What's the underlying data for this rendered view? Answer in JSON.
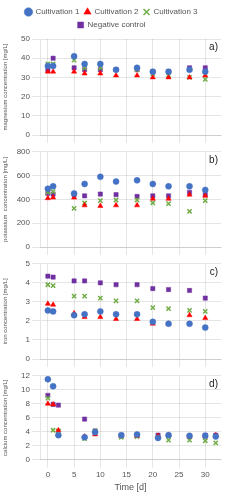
{
  "chart_data": [
    {
      "type": "scatter",
      "annotation": "a)",
      "ylabel": "magnesium concentration [mg/L]",
      "series": [
        {
          "name": "Cultivation 1",
          "color": "#4472C4",
          "marker": "circle",
          "x": [
            0,
            1,
            5,
            7,
            10,
            13,
            17,
            20,
            23,
            27,
            30
          ],
          "values": [
            36,
            36,
            41,
            37,
            37,
            34,
            35,
            33,
            33,
            34,
            33
          ]
        },
        {
          "name": "Cultivation 2",
          "color": "#FF0000",
          "marker": "triangle",
          "x": [
            0,
            1,
            5,
            7,
            10,
            13,
            17,
            20,
            23,
            27,
            30
          ],
          "values": [
            33,
            33,
            33,
            32,
            32,
            31,
            31,
            30,
            30,
            30,
            31
          ]
        },
        {
          "name": "Cultivation 3",
          "color": "#70AD47",
          "marker": "x",
          "x": [
            0,
            1,
            5,
            7,
            10,
            13,
            17,
            20,
            23,
            27,
            30
          ],
          "values": [
            37,
            37,
            39,
            35,
            35,
            34,
            34,
            32,
            31,
            30,
            29
          ]
        },
        {
          "name": "Negative control",
          "color": "#7030A0",
          "marker": "square",
          "x": [
            0,
            1,
            5,
            7,
            10,
            13,
            17,
            20,
            23,
            27,
            30
          ],
          "values": [
            34,
            40,
            35,
            34,
            34,
            34,
            34,
            33,
            33,
            35,
            35
          ]
        }
      ],
      "xlim": [
        -1.5,
        33
      ],
      "xticks": [
        0,
        5,
        10,
        15,
        20,
        25,
        30
      ],
      "ylim": [
        0,
        50
      ],
      "yticks": [
        0,
        10,
        20,
        30,
        40,
        50
      ],
      "grid": true,
      "legend": "top",
      "tick_labels": "y"
    },
    {
      "type": "scatter",
      "annotation": "b)",
      "ylabel": "potassium  concentration [mg/L]",
      "series": [
        {
          "color": "#4472C4",
          "marker": "circle",
          "x": [
            0,
            1,
            5,
            7,
            10,
            13,
            17,
            20,
            23,
            27,
            30
          ],
          "values": [
            490,
            510,
            450,
            530,
            590,
            550,
            560,
            530,
            510,
            510,
            480
          ]
        },
        {
          "color": "#FF0000",
          "marker": "triangle",
          "x": [
            0,
            1,
            5,
            7,
            10,
            13,
            17,
            20,
            23,
            27,
            30
          ],
          "values": [
            410,
            415,
            415,
            350,
            345,
            350,
            350,
            405,
            405,
            440,
            430
          ]
        },
        {
          "color": "#70AD47",
          "marker": "x",
          "x": [
            0,
            1,
            5,
            7,
            10,
            13,
            17,
            20,
            23,
            27,
            30
          ],
          "values": [
            460,
            465,
            325,
            370,
            390,
            395,
            395,
            370,
            365,
            300,
            390
          ]
        },
        {
          "color": "#7030A0",
          "marker": "square",
          "x": [
            0,
            1,
            5,
            7,
            10,
            13,
            17,
            20,
            23,
            27,
            30
          ],
          "values": [
            450,
            445,
            440,
            430,
            445,
            440,
            425,
            430,
            430,
            460,
            440
          ]
        }
      ],
      "xlim": [
        -1.5,
        33
      ],
      "xticks": [
        0,
        5,
        10,
        15,
        20,
        25,
        30
      ],
      "ylim": [
        0,
        800
      ],
      "yticks": [
        0,
        200,
        400,
        600,
        800
      ],
      "grid": true,
      "tick_labels": "y"
    },
    {
      "type": "scatter",
      "annotation": "c)",
      "ylabel": "iron concentration [mg/L]",
      "series": [
        {
          "color": "#4472C4",
          "marker": "circle",
          "x": [
            0,
            1,
            5,
            7,
            10,
            13,
            17,
            20,
            23,
            27,
            30
          ],
          "values": [
            2.55,
            2.5,
            2.3,
            2.35,
            2.5,
            2.35,
            2.35,
            1.95,
            1.85,
            1.85,
            1.65
          ]
        },
        {
          "color": "#FF0000",
          "marker": "triangle",
          "x": [
            0,
            1,
            5,
            7,
            10,
            13,
            17,
            20,
            23,
            27,
            30
          ],
          "values": [
            2.9,
            2.85,
            2.4,
            2.2,
            2.2,
            2.1,
            2.1,
            1.85,
            1.85,
            2.3,
            2.15
          ]
        },
        {
          "color": "#70AD47",
          "marker": "x",
          "x": [
            0,
            1,
            5,
            7,
            10,
            13,
            17,
            20,
            23,
            27,
            30
          ],
          "values": [
            3.9,
            3.85,
            3.3,
            3.3,
            3.2,
            3.05,
            3.05,
            2.7,
            2.65,
            2.55,
            2.5
          ]
        },
        {
          "color": "#7030A0",
          "marker": "square",
          "x": [
            0,
            1,
            5,
            7,
            10,
            13,
            17,
            20,
            23,
            27,
            30
          ],
          "values": [
            4.35,
            4.3,
            4.1,
            4.1,
            4.0,
            3.9,
            3.9,
            3.7,
            3.65,
            3.6,
            3.2
          ]
        }
      ],
      "xlim": [
        -1.5,
        33
      ],
      "xticks": [
        0,
        5,
        10,
        15,
        20,
        25,
        30
      ],
      "ylim": [
        0,
        5
      ],
      "yticks": [
        0,
        1,
        2,
        3,
        4,
        5
      ],
      "grid": true,
      "tick_labels": "y"
    },
    {
      "type": "scatter",
      "annotation": "d)",
      "ylabel": "calcium concentration [mg/L]",
      "xlabel": "Time [d]",
      "series": [
        {
          "color": "#4472C4",
          "marker": "circle",
          "x": [
            0,
            1,
            2,
            7,
            9,
            14,
            17,
            21,
            23,
            27,
            30,
            32
          ],
          "values": [
            11.5,
            10.5,
            3.5,
            3.2,
            3.9,
            3.5,
            3.6,
            3.1,
            3.5,
            3.4,
            3.4,
            3.3
          ]
        },
        {
          "color": "#FF0000",
          "marker": "triangle",
          "x": [
            0,
            1,
            2,
            7,
            9,
            14,
            17,
            21,
            23,
            27,
            30,
            32
          ],
          "values": [
            8.0,
            7.9,
            4.2,
            3.3,
            3.6,
            3.4,
            3.4,
            3.4,
            3.5,
            3.3,
            3.3,
            3.5
          ]
        },
        {
          "color": "#70AD47",
          "marker": "x",
          "x": [
            0,
            1,
            2,
            7,
            9,
            14,
            17,
            21,
            23,
            27,
            30,
            32
          ],
          "values": [
            8.8,
            4.2,
            4.1,
            3.0,
            4.1,
            3.2,
            3.3,
            3.2,
            2.8,
            2.8,
            2.7,
            2.4
          ]
        },
        {
          "color": "#7030A0",
          "marker": "square",
          "x": [
            0,
            1,
            2,
            7,
            9,
            14,
            17,
            21,
            23,
            27,
            30,
            32
          ],
          "values": [
            9.2,
            7.9,
            7.8,
            5.8,
            4.1,
            3.5,
            3.5,
            3.5,
            3.5,
            3.3,
            3.5,
            3.5
          ]
        }
      ],
      "xlim": [
        -1.5,
        33
      ],
      "xticks": [
        0,
        5,
        10,
        15,
        20,
        25,
        30
      ],
      "ylim": [
        0,
        12
      ],
      "yticks": [
        0,
        2,
        4,
        6,
        8,
        10,
        12
      ],
      "grid": true
    }
  ]
}
